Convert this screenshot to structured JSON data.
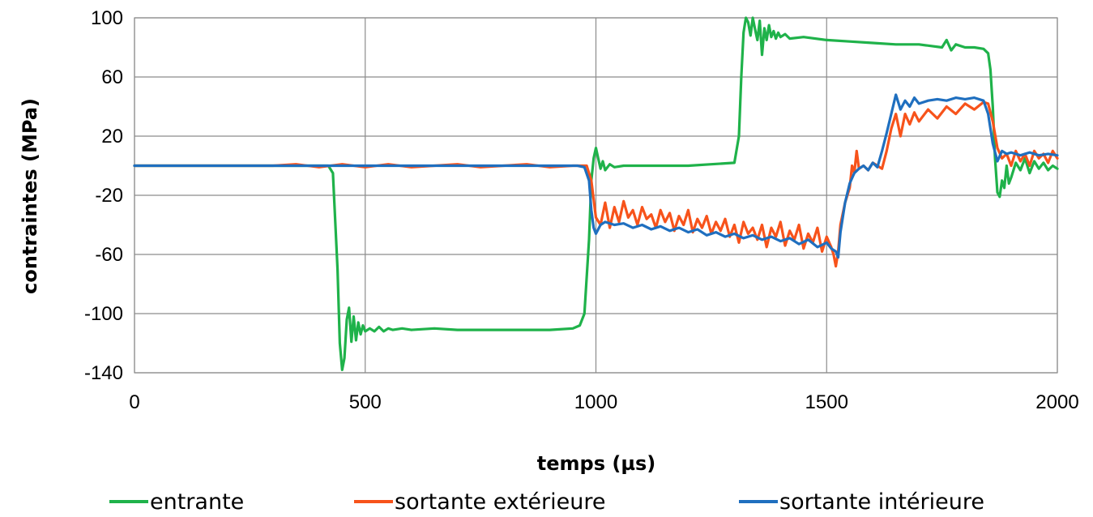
{
  "chart_data": {
    "type": "line",
    "title": "",
    "xlabel": "temps (µs)",
    "ylabel": "contraintes (MPa)",
    "xlim": [
      0,
      2000
    ],
    "ylim": [
      -140,
      100
    ],
    "xticks": [
      0,
      500,
      1000,
      1500,
      2000
    ],
    "yticks": [
      -140,
      -100,
      -60,
      -20,
      20,
      60,
      100
    ],
    "grid": true,
    "legend": "bottom",
    "series": [
      {
        "name": "entrante",
        "color": "#1fb24a",
        "x": [
          0,
          420,
          430,
          440,
          445,
          450,
          455,
          460,
          465,
          470,
          475,
          480,
          485,
          490,
          495,
          500,
          510,
          520,
          530,
          540,
          550,
          560,
          580,
          600,
          650,
          700,
          750,
          800,
          850,
          900,
          950,
          965,
          975,
          985,
          990,
          995,
          1000,
          1005,
          1010,
          1015,
          1020,
          1030,
          1040,
          1060,
          1080,
          1100,
          1150,
          1200,
          1250,
          1300,
          1310,
          1315,
          1320,
          1325,
          1330,
          1335,
          1340,
          1345,
          1350,
          1355,
          1360,
          1365,
          1370,
          1375,
          1380,
          1385,
          1390,
          1395,
          1400,
          1410,
          1420,
          1450,
          1500,
          1550,
          1600,
          1650,
          1700,
          1750,
          1760,
          1770,
          1780,
          1800,
          1820,
          1840,
          1850,
          1855,
          1860,
          1865,
          1870,
          1875,
          1880,
          1885,
          1890,
          1895,
          1900,
          1910,
          1920,
          1930,
          1940,
          1950,
          1960,
          1970,
          1980,
          1990,
          2000
        ],
        "values": [
          0,
          0,
          -5,
          -70,
          -120,
          -138,
          -130,
          -104,
          -96,
          -119,
          -102,
          -118,
          -106,
          -114,
          -108,
          -112,
          -110,
          -112,
          -109,
          -112,
          -110,
          -111,
          -110,
          -111,
          -110,
          -111,
          -111,
          -111,
          -111,
          -111,
          -110,
          -108,
          -100,
          -50,
          -10,
          5,
          12,
          5,
          -2,
          3,
          -3,
          1,
          -1,
          0,
          0,
          0,
          0,
          0,
          1,
          2,
          20,
          60,
          90,
          100,
          97,
          88,
          100,
          92,
          85,
          98,
          75,
          93,
          85,
          95,
          87,
          91,
          86,
          90,
          87,
          89,
          86,
          87,
          85,
          84,
          83,
          82,
          82,
          80,
          85,
          78,
          82,
          80,
          80,
          79,
          76,
          65,
          40,
          5,
          -18,
          -21,
          -10,
          -15,
          0,
          -12,
          -8,
          2,
          -3,
          5,
          -5,
          3,
          -2,
          2,
          -3,
          0,
          -2
        ]
      },
      {
        "name": "sortante extérieure",
        "color": "#f7531b",
        "x": [
          0,
          300,
          350,
          400,
          450,
          500,
          550,
          600,
          650,
          700,
          750,
          800,
          850,
          900,
          950,
          980,
          990,
          1000,
          1010,
          1020,
          1030,
          1040,
          1050,
          1060,
          1070,
          1080,
          1090,
          1100,
          1110,
          1120,
          1130,
          1140,
          1150,
          1160,
          1170,
          1180,
          1190,
          1200,
          1210,
          1220,
          1230,
          1240,
          1250,
          1260,
          1270,
          1280,
          1290,
          1300,
          1310,
          1320,
          1330,
          1340,
          1350,
          1360,
          1370,
          1380,
          1390,
          1400,
          1410,
          1420,
          1430,
          1440,
          1450,
          1460,
          1470,
          1480,
          1490,
          1500,
          1510,
          1515,
          1520,
          1525,
          1530,
          1540,
          1550,
          1555,
          1560,
          1565,
          1570,
          1580,
          1590,
          1600,
          1610,
          1620,
          1630,
          1640,
          1650,
          1660,
          1670,
          1680,
          1690,
          1700,
          1720,
          1740,
          1760,
          1780,
          1800,
          1820,
          1840,
          1850,
          1860,
          1870,
          1880,
          1890,
          1900,
          1910,
          1920,
          1930,
          1940,
          1950,
          1960,
          1970,
          1980,
          1990,
          2000
        ],
        "values": [
          0,
          0,
          1,
          -1,
          1,
          -1,
          1,
          -1,
          0,
          1,
          -1,
          0,
          1,
          -1,
          0,
          0,
          -10,
          -35,
          -40,
          -25,
          -42,
          -28,
          -38,
          -24,
          -35,
          -30,
          -40,
          -28,
          -36,
          -33,
          -42,
          -30,
          -38,
          -32,
          -44,
          -34,
          -40,
          -30,
          -45,
          -36,
          -42,
          -34,
          -46,
          -38,
          -44,
          -36,
          -48,
          -40,
          -52,
          -38,
          -46,
          -42,
          -50,
          -40,
          -55,
          -42,
          -48,
          -38,
          -54,
          -44,
          -50,
          -40,
          -56,
          -46,
          -52,
          -42,
          -58,
          -48,
          -55,
          -60,
          -68,
          -58,
          -40,
          -25,
          -15,
          0,
          -5,
          10,
          -2,
          0,
          -3,
          2,
          0,
          -2,
          10,
          25,
          35,
          20,
          35,
          28,
          36,
          30,
          38,
          32,
          40,
          35,
          42,
          38,
          43,
          42,
          30,
          12,
          5,
          8,
          0,
          10,
          3,
          8,
          0,
          10,
          5,
          8,
          2,
          10,
          5
        ]
      },
      {
        "name": "sortante intérieure",
        "color": "#1f6fbf",
        "x": [
          0,
          300,
          400,
          500,
          600,
          700,
          800,
          900,
          960,
          975,
          985,
          990,
          995,
          1000,
          1010,
          1020,
          1040,
          1060,
          1080,
          1100,
          1120,
          1140,
          1160,
          1180,
          1200,
          1220,
          1240,
          1260,
          1280,
          1300,
          1320,
          1340,
          1360,
          1380,
          1400,
          1420,
          1440,
          1460,
          1480,
          1500,
          1510,
          1520,
          1525,
          1530,
          1540,
          1550,
          1560,
          1570,
          1580,
          1590,
          1600,
          1610,
          1620,
          1630,
          1640,
          1650,
          1660,
          1670,
          1680,
          1690,
          1700,
          1720,
          1740,
          1760,
          1780,
          1800,
          1820,
          1840,
          1850,
          1860,
          1870,
          1880,
          1890,
          1900,
          1920,
          1940,
          1960,
          1980,
          2000
        ],
        "values": [
          0,
          0,
          0,
          0,
          0,
          0,
          0,
          0,
          0,
          -1,
          -10,
          -30,
          -42,
          -46,
          -40,
          -38,
          -40,
          -39,
          -42,
          -40,
          -43,
          -41,
          -44,
          -42,
          -45,
          -43,
          -47,
          -45,
          -48,
          -46,
          -49,
          -47,
          -50,
          -48,
          -51,
          -49,
          -53,
          -50,
          -55,
          -52,
          -56,
          -58,
          -62,
          -45,
          -25,
          -12,
          -5,
          -2,
          0,
          -3,
          2,
          -1,
          10,
          22,
          35,
          48,
          38,
          44,
          40,
          46,
          42,
          44,
          45,
          44,
          46,
          45,
          46,
          44,
          35,
          15,
          3,
          10,
          8,
          9,
          7,
          9,
          7,
          8,
          7
        ]
      }
    ]
  }
}
